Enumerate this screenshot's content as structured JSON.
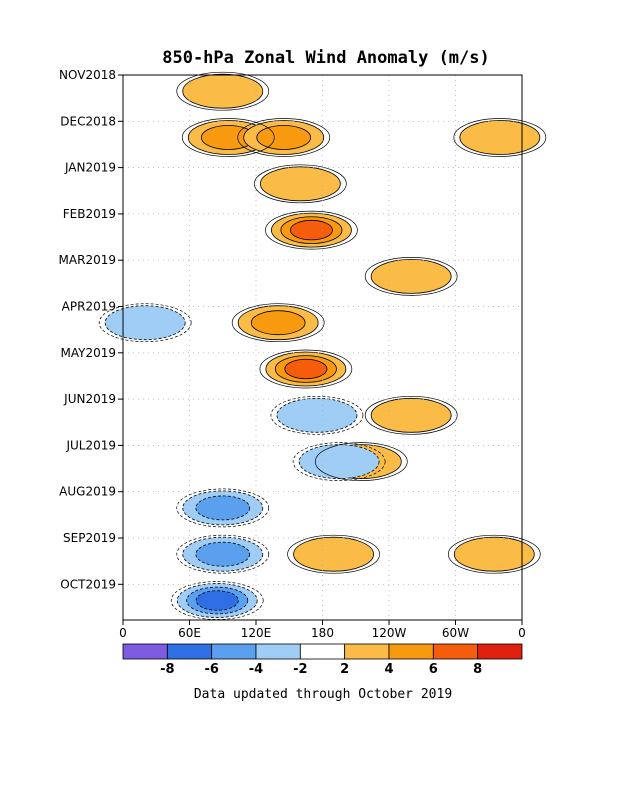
{
  "chart_data": {
    "type": "heatmap",
    "title": "850-hPa Zonal Wind Anomaly (m/s)",
    "footnote": "Data updated through October 2019",
    "units": "m/s",
    "y_tick_labels": [
      "NOV2018",
      "DEC2018",
      "JAN2019",
      "FEB2019",
      "MAR2019",
      "APR2019",
      "MAY2019",
      "JUN2019",
      "JUL2019",
      "AUG2019",
      "SEP2019",
      "OCT2019"
    ],
    "x_tick_labels": [
      "0",
      "60E",
      "120E",
      "180",
      "120W",
      "60W",
      "0"
    ],
    "x_tick_longitudes_east": [
      0,
      60,
      120,
      180,
      240,
      300,
      360
    ],
    "colorbar": {
      "bin_edges": [
        -10,
        -8,
        -6,
        -4,
        -2,
        2,
        4,
        6,
        8,
        10
      ],
      "labels": [
        "-8",
        "-6",
        "-4",
        "-2",
        "2",
        "4",
        "6",
        "8"
      ],
      "colors": [
        "#7d5ce0",
        "#2f6fe6",
        "#5aa0ef",
        "#9fcdf5",
        "#ffffff",
        "#fbbb47",
        "#f89a0f",
        "#f55c0c",
        "#e0200e"
      ]
    },
    "grid": true,
    "anomaly_features": [
      {
        "month": "NOV2018",
        "lon_east": 90,
        "value": 3
      },
      {
        "month": "DEC2018",
        "lon_east": 95,
        "value": 5
      },
      {
        "month": "DEC2018",
        "lon_east": 145,
        "value": 4
      },
      {
        "month": "JAN2019",
        "lon_east": 160,
        "value": 3
      },
      {
        "month": "FEB2019",
        "lon_east": 170,
        "value": 7
      },
      {
        "month": "MAR2019",
        "lon_east": 260,
        "value": 3
      },
      {
        "month": "APR2019",
        "lon_east": 140,
        "value": 5
      },
      {
        "month": "MAY2019",
        "lon_east": 165,
        "value": 6
      },
      {
        "month": "JUN2019",
        "lon_east": 260,
        "value": 3
      },
      {
        "month": "JUL2019",
        "lon_east": 215,
        "value": 3
      },
      {
        "month": "JUL2019",
        "lon_east": 195,
        "value": -3
      },
      {
        "month": "AUG2019",
        "lon_east": 90,
        "value": -4
      },
      {
        "month": "SEP2019",
        "lon_east": 90,
        "value": -5
      },
      {
        "month": "OCT2019",
        "lon_east": 85,
        "value": -7
      },
      {
        "month": "SEP2019",
        "lon_east": 190,
        "value": 3
      },
      {
        "month": "SEP2019",
        "lon_east": 335,
        "value": 3
      },
      {
        "month": "DEC2018",
        "lon_east": 340,
        "value": 3
      },
      {
        "month": "APR2019",
        "lon_east": 20,
        "value": -3
      },
      {
        "month": "JUN2019",
        "lon_east": 175,
        "value": -3
      }
    ]
  }
}
